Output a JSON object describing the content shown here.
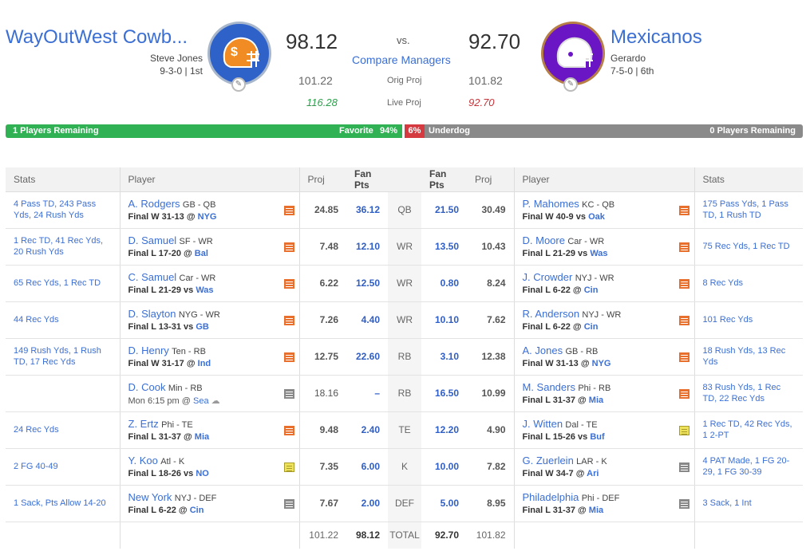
{
  "home": {
    "name": "WayOutWest Cowb...",
    "manager": "Steve Jones",
    "record": "9-3-0 | 1st",
    "score": "98.12",
    "proj": "101.22",
    "live_proj": "116.28",
    "color": "#2e62c9"
  },
  "away": {
    "name": "Mexicanos",
    "manager": "Gerardo",
    "record": "7-5-0 | 6th",
    "score": "92.70",
    "proj": "101.82",
    "live_proj": "92.70",
    "color": "#6a16c4"
  },
  "header": {
    "vs": "vs.",
    "compare": "Compare Managers",
    "orig_proj_label": "Orig Proj",
    "live_proj_label": "Live Proj"
  },
  "probability": {
    "home_remaining": "1 Players Remaining",
    "favorite_label": "Favorite",
    "favorite_pct": "94%",
    "underdog_pct": "6%",
    "underdog_label": "Underdog",
    "away_remaining": "0 Players Remaining",
    "favorite_fraction": 0.94
  },
  "columns": {
    "stats": "Stats",
    "player": "Player",
    "proj": "Proj",
    "fan_pts": "Fan Pts"
  },
  "rows": [
    {
      "pos": "QB",
      "h_stats": "4 Pass TD, 243 Pass Yds, 24 Rush Yds",
      "h_name": "A. Rodgers",
      "h_team": "GB - QB",
      "h_game": "Final W 31-13",
      "h_at": "@",
      "h_opp": "NYG",
      "h_note": "orange",
      "h_proj": "24.85",
      "h_pts": "36.12",
      "a_pts": "21.50",
      "a_proj": "30.49",
      "a_name": "P. Mahomes",
      "a_team": "KC - QB",
      "a_game": "Final W 40-9",
      "a_at": "vs",
      "a_opp": "Oak",
      "a_note": "orange",
      "a_stats": "175 Pass Yds, 1 Pass TD, 1 Rush TD"
    },
    {
      "pos": "WR",
      "h_stats": "1 Rec TD, 41 Rec Yds, 20 Rush Yds",
      "h_name": "D. Samuel",
      "h_team": "SF - WR",
      "h_game": "Final L 17-20",
      "h_at": "@",
      "h_opp": "Bal",
      "h_note": "orange",
      "h_proj": "7.48",
      "h_pts": "12.10",
      "a_pts": "13.50",
      "a_proj": "10.43",
      "a_name": "D. Moore",
      "a_team": "Car - WR",
      "a_game": "Final L 21-29",
      "a_at": "vs",
      "a_opp": "Was",
      "a_note": "orange",
      "a_stats": "75 Rec Yds, 1 Rec TD"
    },
    {
      "pos": "WR",
      "h_stats": "65 Rec Yds, 1 Rec TD",
      "h_name": "C. Samuel",
      "h_team": "Car - WR",
      "h_game": "Final L 21-29",
      "h_at": "vs",
      "h_opp": "Was",
      "h_note": "orange",
      "h_proj": "6.22",
      "h_pts": "12.50",
      "a_pts": "0.80",
      "a_proj": "8.24",
      "a_name": "J. Crowder",
      "a_team": "NYJ - WR",
      "a_game": "Final L 6-22",
      "a_at": "@",
      "a_opp": "Cin",
      "a_note": "orange",
      "a_stats": "8 Rec Yds"
    },
    {
      "pos": "WR",
      "h_stats": "44 Rec Yds",
      "h_name": "D. Slayton",
      "h_team": "NYG - WR",
      "h_game": "Final L 13-31",
      "h_at": "vs",
      "h_opp": "GB",
      "h_note": "orange",
      "h_proj": "7.26",
      "h_pts": "4.40",
      "a_pts": "10.10",
      "a_proj": "7.62",
      "a_name": "R. Anderson",
      "a_team": "NYJ - WR",
      "a_game": "Final L 6-22",
      "a_at": "@",
      "a_opp": "Cin",
      "a_note": "orange",
      "a_stats": "101 Rec Yds"
    },
    {
      "pos": "RB",
      "h_stats": "149 Rush Yds, 1 Rush TD, 17 Rec Yds",
      "h_name": "D. Henry",
      "h_team": "Ten - RB",
      "h_game": "Final W 31-17",
      "h_at": "@",
      "h_opp": "Ind",
      "h_note": "orange",
      "h_proj": "12.75",
      "h_pts": "22.60",
      "a_pts": "3.10",
      "a_proj": "12.38",
      "a_name": "A. Jones",
      "a_team": "GB - RB",
      "a_game": "Final W 31-13",
      "a_at": "@",
      "a_opp": "NYG",
      "a_note": "orange",
      "a_stats": "18 Rush Yds, 13 Rec Yds"
    },
    {
      "pos": "RB",
      "h_stats": "",
      "h_name": "D. Cook",
      "h_team": "Min - RB",
      "h_game": "Mon 6:15 pm",
      "h_at": "@",
      "h_opp": "Sea",
      "h_note": "gray",
      "h_proj": "18.16",
      "h_pts": "–",
      "h_upcoming": true,
      "a_pts": "16.50",
      "a_proj": "10.99",
      "a_name": "M. Sanders",
      "a_team": "Phi - RB",
      "a_game": "Final L 31-37",
      "a_at": "@",
      "a_opp": "Mia",
      "a_note": "orange",
      "a_stats": "83 Rush Yds, 1 Rec TD, 22 Rec Yds"
    },
    {
      "pos": "TE",
      "h_stats": "24 Rec Yds",
      "h_name": "Z. Ertz",
      "h_team": "Phi - TE",
      "h_game": "Final L 31-37",
      "h_at": "@",
      "h_opp": "Mia",
      "h_note": "orange",
      "h_proj": "9.48",
      "h_pts": "2.40",
      "a_pts": "12.20",
      "a_proj": "4.90",
      "a_name": "J. Witten",
      "a_team": "Dal - TE",
      "a_game": "Final L 15-26",
      "a_at": "vs",
      "a_opp": "Buf",
      "a_note": "yellow",
      "a_stats": "1 Rec TD, 42 Rec Yds, 1 2-PT"
    },
    {
      "pos": "K",
      "h_stats": "2 FG 40-49",
      "h_name": "Y. Koo",
      "h_team": "Atl - K",
      "h_game": "Final L 18-26",
      "h_at": "vs",
      "h_opp": "NO",
      "h_note": "yellow",
      "h_proj": "7.35",
      "h_pts": "6.00",
      "a_pts": "10.00",
      "a_proj": "7.82",
      "a_name": "G. Zuerlein",
      "a_team": "LAR - K",
      "a_game": "Final W 34-7",
      "a_at": "@",
      "a_opp": "Ari",
      "a_note": "gray",
      "a_stats": "4 PAT Made, 1 FG 20-29, 1 FG 30-39"
    },
    {
      "pos": "DEF",
      "h_stats": "1 Sack, Pts Allow 14-20",
      "h_name": "New York",
      "h_team": "NYJ - DEF",
      "h_game": "Final L 6-22",
      "h_at": "@",
      "h_opp": "Cin",
      "h_note": "gray",
      "h_proj": "7.67",
      "h_pts": "2.00",
      "a_pts": "5.00",
      "a_proj": "8.95",
      "a_name": "Philadelphia",
      "a_team": "Phi - DEF",
      "a_game": "Final L 31-37",
      "a_at": "@",
      "a_opp": "Mia",
      "a_note": "gray",
      "a_stats": "3 Sack, 1 Int"
    }
  ],
  "totals": {
    "label": "TOTAL",
    "h_proj": "101.22",
    "h_pts": "98.12",
    "a_pts": "92.70",
    "a_proj": "101.82"
  }
}
